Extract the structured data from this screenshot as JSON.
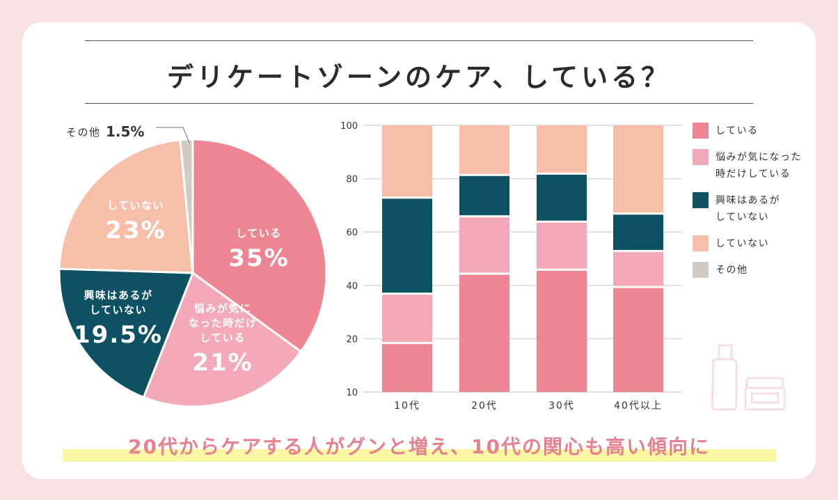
{
  "title": "デリケートゾーンのケア、している？",
  "caption": "20代からケアする人がグンと増え、10代の関心も高い傾向に",
  "colors": {
    "background": "#f8e1e4",
    "している": "#ee8593",
    "悩みが気になった時だけしている": "#f3a9b8",
    "興味はあるがしていない": "#0d5163",
    "していない": "#f7bfaa",
    "その他": "#d3cbc3",
    "caption": "#e8818f",
    "highlight": "#fbf7a2"
  },
  "chart_data": [
    {
      "type": "pie",
      "slices": [
        {
          "label": "している",
          "value": 35,
          "value_label": "35%",
          "color": "#ee8593"
        },
        {
          "label": "悩みが気になった時だけしている",
          "label_lines": [
            "悩みが気に",
            "なった時だけ",
            "している"
          ],
          "value": 21,
          "value_label": "21%",
          "color": "#f3a9b8"
        },
        {
          "label": "興味はあるがしていない",
          "label_lines": [
            "興味はあるが",
            "していない"
          ],
          "value": 19.5,
          "value_label": "19.5%",
          "color": "#0d5163"
        },
        {
          "label": "していない",
          "value": 23,
          "value_label": "23%",
          "color": "#f7bfaa"
        },
        {
          "label": "その他",
          "value": 1.5,
          "value_label": "1.5%",
          "color": "#d3cbc3"
        }
      ],
      "start": "top",
      "direction": "clockwise"
    },
    {
      "type": "bar",
      "stacked": true,
      "categories": [
        "10代",
        "20代",
        "30代",
        "40代以上"
      ],
      "y_tick_labels": [
        "10",
        "20",
        "40",
        "60",
        "80",
        "100"
      ],
      "ylim": [
        0,
        100
      ],
      "grid": true,
      "legend_position": "right",
      "series": [
        {
          "name": "している",
          "values": [
            18,
            44,
            45.5,
            39
          ],
          "color": "#ee8593"
        },
        {
          "name": "悩みが気になった時だけしている",
          "values": [
            18.5,
            21.5,
            18,
            13.5
          ],
          "color": "#f3a9b8"
        },
        {
          "name": "興味はあるがしていない",
          "values": [
            36,
            15.5,
            18,
            14
          ],
          "color": "#0d5163"
        },
        {
          "name": "していない",
          "values": [
            27.5,
            19,
            18.5,
            33.5
          ],
          "color": "#f7bfaa"
        },
        {
          "name": "その他",
          "values": [
            0,
            0,
            0,
            0
          ],
          "color": "#d3cbc3"
        }
      ]
    }
  ],
  "legend": [
    {
      "lines": [
        "している"
      ],
      "color": "#ee8593"
    },
    {
      "lines": [
        "悩みが気になった",
        "時だけしている"
      ],
      "color": "#f3a9b8"
    },
    {
      "lines": [
        "興味はあるが",
        "していない"
      ],
      "color": "#0d5163"
    },
    {
      "lines": [
        "していない"
      ],
      "color": "#f7bfaa"
    },
    {
      "lines": [
        "その他"
      ],
      "color": "#d3cbc3"
    }
  ],
  "decoration": {
    "icons": [
      "bottle-icon",
      "jar-icon"
    ]
  }
}
